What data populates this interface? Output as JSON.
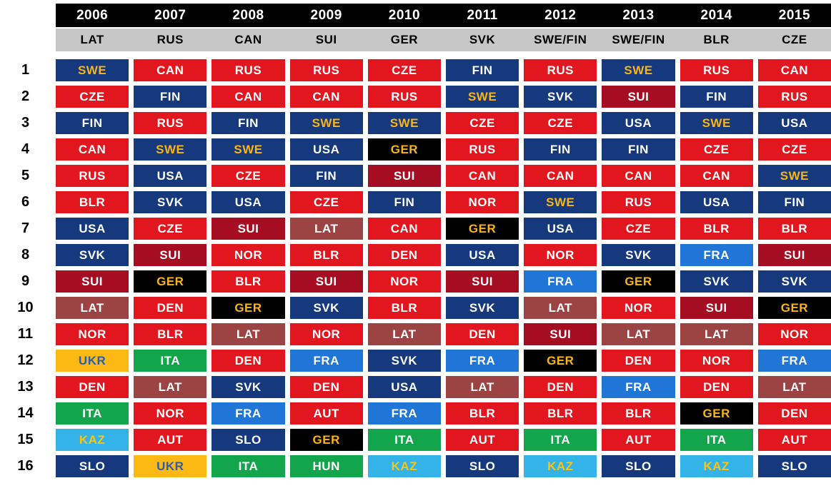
{
  "chart_data": {
    "type": "table",
    "row_labels": [
      "1",
      "2",
      "3",
      "4",
      "5",
      "6",
      "7",
      "8",
      "9",
      "10",
      "11",
      "12",
      "13",
      "14",
      "15",
      "16"
    ],
    "columns": [
      {
        "year": "2006",
        "host": "LAT",
        "standings": [
          "SWE",
          "CZE",
          "FIN",
          "CAN",
          "RUS",
          "BLR",
          "USA",
          "SVK",
          "SUI",
          "LAT",
          "NOR",
          "UKR",
          "DEN",
          "ITA",
          "KAZ",
          "SLO"
        ]
      },
      {
        "year": "2007",
        "host": "RUS",
        "standings": [
          "CAN",
          "FIN",
          "RUS",
          "SWE",
          "USA",
          "SVK",
          "CZE",
          "SUI",
          "GER",
          "DEN",
          "BLR",
          "ITA",
          "LAT",
          "NOR",
          "AUT",
          "UKR"
        ]
      },
      {
        "year": "2008",
        "host": "CAN",
        "standings": [
          "RUS",
          "CAN",
          "FIN",
          "SWE",
          "CZE",
          "USA",
          "SUI",
          "NOR",
          "BLR",
          "GER",
          "LAT",
          "DEN",
          "SVK",
          "FRA",
          "SLO",
          "ITA"
        ]
      },
      {
        "year": "2009",
        "host": "SUI",
        "standings": [
          "RUS",
          "CAN",
          "SWE",
          "USA",
          "FIN",
          "CZE",
          "LAT",
          "BLR",
          "SUI",
          "SVK",
          "NOR",
          "FRA",
          "DEN",
          "AUT",
          "GER",
          "HUN"
        ]
      },
      {
        "year": "2010",
        "host": "GER",
        "standings": [
          "CZE",
          "RUS",
          "SWE",
          "GER",
          "SUI",
          "FIN",
          "CAN",
          "DEN",
          "NOR",
          "BLR",
          "LAT",
          "SVK",
          "USA",
          "FRA",
          "ITA",
          "KAZ"
        ]
      },
      {
        "year": "2011",
        "host": "SVK",
        "standings": [
          "FIN",
          "SWE",
          "CZE",
          "RUS",
          "CAN",
          "NOR",
          "GER",
          "USA",
          "SUI",
          "SVK",
          "DEN",
          "FRA",
          "LAT",
          "BLR",
          "AUT",
          "SLO"
        ]
      },
      {
        "year": "2012",
        "host": "SWE/FIN",
        "standings": [
          "RUS",
          "SVK",
          "CZE",
          "FIN",
          "CAN",
          "SWE",
          "USA",
          "NOR",
          "FRA",
          "LAT",
          "SUI",
          "GER",
          "DEN",
          "BLR",
          "ITA",
          "KAZ"
        ]
      },
      {
        "year": "2013",
        "host": "SWE/FIN",
        "standings": [
          "SWE",
          "SUI",
          "USA",
          "FIN",
          "CAN",
          "RUS",
          "CZE",
          "SVK",
          "GER",
          "NOR",
          "LAT",
          "DEN",
          "FRA",
          "BLR",
          "AUT",
          "SLO"
        ]
      },
      {
        "year": "2014",
        "host": "BLR",
        "standings": [
          "RUS",
          "FIN",
          "SWE",
          "CZE",
          "CAN",
          "USA",
          "BLR",
          "FRA",
          "SVK",
          "SUI",
          "LAT",
          "NOR",
          "DEN",
          "GER",
          "ITA",
          "KAZ"
        ]
      },
      {
        "year": "2015",
        "host": "CZE",
        "standings": [
          "CAN",
          "RUS",
          "USA",
          "CZE",
          "SWE",
          "FIN",
          "BLR",
          "SUI",
          "SVK",
          "GER",
          "NOR",
          "FRA",
          "LAT",
          "DEN",
          "AUT",
          "SLO"
        ]
      }
    ],
    "country_colors": {
      "SWE": {
        "bg": "#15397c",
        "fg": "#f9b514"
      },
      "FIN": {
        "bg": "#15397c",
        "fg": "#ffffff"
      },
      "USA": {
        "bg": "#15397c",
        "fg": "#ffffff"
      },
      "SVK": {
        "bg": "#15397c",
        "fg": "#ffffff"
      },
      "SLO": {
        "bg": "#15397c",
        "fg": "#ffffff"
      },
      "CAN": {
        "bg": "#e1161f",
        "fg": "#ffffff"
      },
      "RUS": {
        "bg": "#e1161f",
        "fg": "#ffffff"
      },
      "CZE": {
        "bg": "#e1161f",
        "fg": "#ffffff"
      },
      "NOR": {
        "bg": "#e1161f",
        "fg": "#ffffff"
      },
      "DEN": {
        "bg": "#e1161f",
        "fg": "#ffffff"
      },
      "BLR": {
        "bg": "#e1161f",
        "fg": "#ffffff"
      },
      "AUT": {
        "bg": "#e1161f",
        "fg": "#ffffff"
      },
      "SUI": {
        "bg": "#a50d22",
        "fg": "#ffffff"
      },
      "LAT": {
        "bg": "#9c4444",
        "fg": "#ffffff"
      },
      "FRA": {
        "bg": "#1f76d6",
        "fg": "#ffffff"
      },
      "KAZ": {
        "bg": "#33b3e7",
        "fg": "#f9c514"
      },
      "ITA": {
        "bg": "#12a54b",
        "fg": "#ffffff"
      },
      "HUN": {
        "bg": "#12a54b",
        "fg": "#ffffff"
      },
      "UKR": {
        "bg": "#fdb913",
        "fg": "#2a5db0"
      },
      "GER": {
        "bg": "#000000",
        "fg": "#f9b514"
      }
    },
    "header_colors": {
      "year_bg": "#000000",
      "year_fg": "#ffffff",
      "host_bg": "#c7c7c7",
      "host_fg": "#000000"
    }
  }
}
